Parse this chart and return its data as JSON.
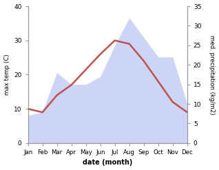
{
  "months": [
    "Jan",
    "Feb",
    "Mar",
    "Apr",
    "May",
    "Jun",
    "Jul",
    "Aug",
    "Sep",
    "Oct",
    "Nov",
    "Dec"
  ],
  "max_temp": [
    10.0,
    9.0,
    14.0,
    17.0,
    21.5,
    26.0,
    30.0,
    29.0,
    24.0,
    18.0,
    12.0,
    9.0
  ],
  "precipitation": [
    7.0,
    8.0,
    18.0,
    15.0,
    15.0,
    17.0,
    25.0,
    32.0,
    27.0,
    22.0,
    22.0,
    10.0
  ],
  "temp_color": "#c0504d",
  "precip_fill_color": "#c5cef5",
  "precip_fill_alpha": 0.85,
  "temp_ylim": [
    0,
    40
  ],
  "precip_ylim": [
    0,
    35
  ],
  "temp_yticks": [
    0,
    10,
    20,
    30,
    40
  ],
  "precip_yticks": [
    0,
    5,
    10,
    15,
    20,
    25,
    30,
    35
  ],
  "temp_ylabel": "max temp (C)",
  "precip_ylabel": "med. precipitation (kg/m2)",
  "xlabel": "date (month)",
  "bg_color": "#ffffff",
  "temp_linewidth": 1.8,
  "spine_color": "#999999"
}
